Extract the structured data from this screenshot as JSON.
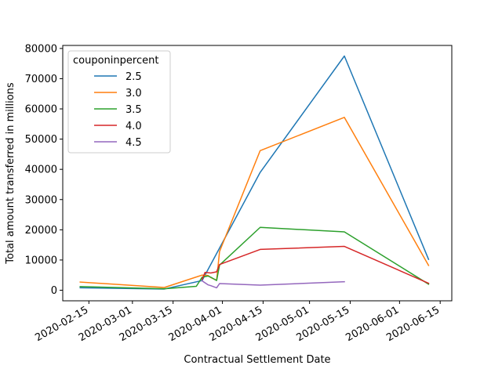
{
  "chart_data": {
    "type": "line",
    "title": "",
    "xlabel": "Contractual Settlement Date",
    "ylabel": "Total amount transferred in millions",
    "xlim": [
      "2020-02-06",
      "2020-06-19"
    ],
    "ylim": [
      -3500,
      81000
    ],
    "x_ticks": [
      "2020-02-15",
      "2020-03-01",
      "2020-03-15",
      "2020-04-01",
      "2020-04-15",
      "2020-05-01",
      "2020-05-15",
      "2020-06-01",
      "2020-06-15"
    ],
    "y_ticks": [
      0,
      10000,
      20000,
      30000,
      40000,
      50000,
      60000,
      70000,
      80000
    ],
    "grid": false,
    "legend": {
      "title": "couponinpercent",
      "placement": "upper-left"
    },
    "series": [
      {
        "name": "2.5",
        "color": "#1f77b4",
        "points": [
          [
            "2020-02-12",
            800
          ],
          [
            "2020-03-12",
            400
          ],
          [
            "2020-03-25",
            3200
          ],
          [
            "2020-04-14",
            39000
          ],
          [
            "2020-05-13",
            77500
          ],
          [
            "2020-06-11",
            10200
          ]
        ]
      },
      {
        "name": "3.0",
        "color": "#ff7f0e",
        "points": [
          [
            "2020-02-12",
            2700
          ],
          [
            "2020-03-12",
            900
          ],
          [
            "2020-03-25",
            5000
          ],
          [
            "2020-03-27",
            4900
          ],
          [
            "2020-03-28",
            4200
          ],
          [
            "2020-03-30",
            3300
          ],
          [
            "2020-03-31",
            12800
          ],
          [
            "2020-04-14",
            46200
          ],
          [
            "2020-05-13",
            57200
          ],
          [
            "2020-06-11",
            8200
          ]
        ]
      },
      {
        "name": "3.5",
        "color": "#2ca02c",
        "points": [
          [
            "2020-02-12",
            1200
          ],
          [
            "2020-03-12",
            500
          ],
          [
            "2020-03-23",
            1300
          ],
          [
            "2020-03-25",
            4300
          ],
          [
            "2020-03-27",
            4700
          ],
          [
            "2020-03-28",
            4300
          ],
          [
            "2020-03-30",
            3200
          ],
          [
            "2020-03-31",
            8300
          ],
          [
            "2020-04-14",
            20800
          ],
          [
            "2020-05-13",
            19300
          ],
          [
            "2020-06-11",
            2000
          ]
        ]
      },
      {
        "name": "4.0",
        "color": "#d62728",
        "points": [
          [
            "2020-03-25",
            3600
          ],
          [
            "2020-03-26",
            5900
          ],
          [
            "2020-03-28",
            5700
          ],
          [
            "2020-03-30",
            6100
          ],
          [
            "2020-03-31",
            8500
          ],
          [
            "2020-04-14",
            13500
          ],
          [
            "2020-05-13",
            14500
          ],
          [
            "2020-06-11",
            2300
          ]
        ]
      },
      {
        "name": "4.5",
        "color": "#9467bd",
        "points": [
          [
            "2020-03-25",
            3100
          ],
          [
            "2020-03-27",
            1800
          ],
          [
            "2020-03-28",
            1500
          ],
          [
            "2020-03-30",
            800
          ],
          [
            "2020-03-31",
            2200
          ],
          [
            "2020-04-14",
            1700
          ],
          [
            "2020-05-13",
            2800
          ]
        ]
      }
    ]
  }
}
